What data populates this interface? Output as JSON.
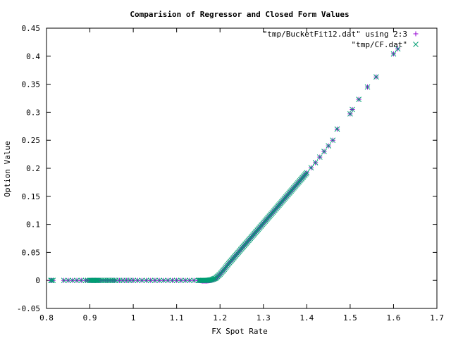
{
  "chart_data": {
    "type": "scatter",
    "title": "Comparision of Regressor and Closed Form Values",
    "xlabel": "FX Spot Rate",
    "ylabel": "Option Value",
    "xlim": [
      0.8,
      1.7
    ],
    "ylim": [
      -0.05,
      0.45
    ],
    "xticks": [
      "0.8",
      "0.9",
      "1",
      "1.1",
      "1.2",
      "1.3",
      "1.4",
      "1.5",
      "1.6",
      "1.7"
    ],
    "yticks": [
      "-0.05",
      "0",
      "0.05",
      "0.1",
      "0.15",
      "0.2",
      "0.25",
      "0.3",
      "0.35",
      "0.4",
      "0.45"
    ],
    "grid": false,
    "legend_position": "top-right",
    "series": [
      {
        "name": "\"tmp/BucketFit12.dat\" using 2:3",
        "marker": "plus",
        "color": "#9400d3",
        "x": [
          0.81,
          0.812,
          0.815,
          0.84,
          0.85,
          0.86,
          0.87,
          0.88,
          0.89,
          0.895,
          0.9,
          0.91,
          0.92,
          0.94,
          0.96,
          1.0,
          1.05,
          1.1,
          1.15,
          1.16,
          1.17,
          1.18,
          1.19,
          1.2,
          1.21,
          1.22,
          1.23,
          1.24,
          1.25,
          1.26,
          1.27,
          1.28,
          1.29,
          1.3,
          1.31,
          1.32,
          1.33,
          1.34,
          1.35,
          1.36,
          1.37,
          1.38,
          1.39,
          1.4,
          1.41,
          1.42,
          1.43,
          1.44,
          1.45,
          1.46,
          1.47,
          1.5,
          1.505,
          1.52,
          1.54,
          1.56,
          1.6,
          1.61
        ],
        "y": [
          0.0,
          0.0,
          0.0,
          0.0,
          0.0,
          0.0,
          0.0,
          0.0,
          0.0,
          0.0,
          0.0,
          0.0,
          0.0,
          0.0,
          0.0,
          0.0,
          0.0,
          0.0,
          0.0,
          -0.001,
          -0.001,
          0.0,
          0.003,
          0.011,
          0.02,
          0.03,
          0.039,
          0.048,
          0.057,
          0.066,
          0.075,
          0.084,
          0.093,
          0.102,
          0.111,
          0.12,
          0.129,
          0.138,
          0.147,
          0.156,
          0.165,
          0.174,
          0.183,
          0.192,
          0.201,
          0.21,
          0.22,
          0.23,
          0.24,
          0.25,
          0.27,
          0.297,
          0.305,
          0.323,
          0.345,
          0.363,
          0.404,
          0.413
        ]
      },
      {
        "name": "\"tmp/CF.dat\"",
        "marker": "cross",
        "color": "#009e73",
        "x": [
          0.81,
          0.812,
          0.815,
          0.84,
          0.85,
          0.86,
          0.87,
          0.88,
          0.89,
          0.895,
          0.9,
          0.91,
          0.92,
          0.94,
          0.96,
          1.0,
          1.05,
          1.1,
          1.15,
          1.16,
          1.17,
          1.18,
          1.19,
          1.2,
          1.21,
          1.22,
          1.23,
          1.24,
          1.25,
          1.26,
          1.27,
          1.28,
          1.29,
          1.3,
          1.31,
          1.32,
          1.33,
          1.34,
          1.35,
          1.36,
          1.37,
          1.38,
          1.39,
          1.4,
          1.41,
          1.42,
          1.43,
          1.44,
          1.45,
          1.46,
          1.47,
          1.5,
          1.505,
          1.52,
          1.54,
          1.56,
          1.6,
          1.61
        ],
        "y": [
          0.0,
          0.0,
          0.0,
          0.0,
          0.0,
          0.0,
          0.0,
          0.0,
          0.0,
          0.0,
          0.0,
          0.0,
          0.0,
          0.0,
          0.0,
          0.0,
          0.0,
          0.0,
          0.0,
          0.0,
          0.0,
          0.001,
          0.004,
          0.011,
          0.02,
          0.03,
          0.039,
          0.048,
          0.057,
          0.066,
          0.075,
          0.084,
          0.093,
          0.102,
          0.111,
          0.12,
          0.129,
          0.138,
          0.147,
          0.156,
          0.165,
          0.174,
          0.183,
          0.192,
          0.201,
          0.21,
          0.22,
          0.23,
          0.24,
          0.25,
          0.27,
          0.297,
          0.305,
          0.323,
          0.345,
          0.363,
          0.404,
          0.413
        ]
      }
    ]
  }
}
